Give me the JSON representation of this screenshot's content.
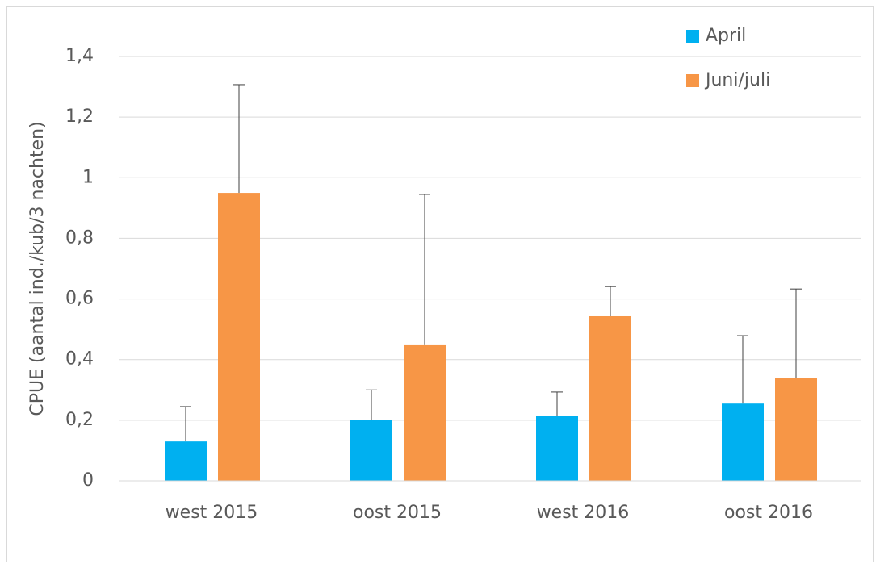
{
  "chart_data": {
    "type": "bar",
    "y_label": "CPUE (aantal ind./kub/3 nachten)",
    "categories": [
      "west 2015",
      "oost 2015",
      "west 2016",
      "oost 2016"
    ],
    "series": [
      {
        "name": "April",
        "color": "#00b0f0",
        "values": [
          0.13,
          0.2,
          0.215,
          0.255
        ],
        "errors": [
          0.115,
          0.1,
          0.078,
          0.224
        ]
      },
      {
        "name": "Juni/juli",
        "color": "#f79646",
        "values": [
          0.95,
          0.45,
          0.543,
          0.338
        ],
        "errors": [
          0.357,
          0.495,
          0.098,
          0.295
        ]
      }
    ],
    "ylim": [
      0,
      1.4
    ],
    "yticks": [
      0,
      {
        "value": 0.2,
        "label": "0,2"
      },
      {
        "value": 0.4,
        "label": "0,4"
      },
      {
        "value": 0.6,
        "label": "0,6"
      },
      {
        "value": 0.8,
        "label": "0,8"
      },
      1,
      {
        "value": 1.2,
        "label": "1,2"
      },
      {
        "value": 1.4,
        "label": "1,4"
      }
    ],
    "grid": true,
    "legend": "top-right"
  }
}
